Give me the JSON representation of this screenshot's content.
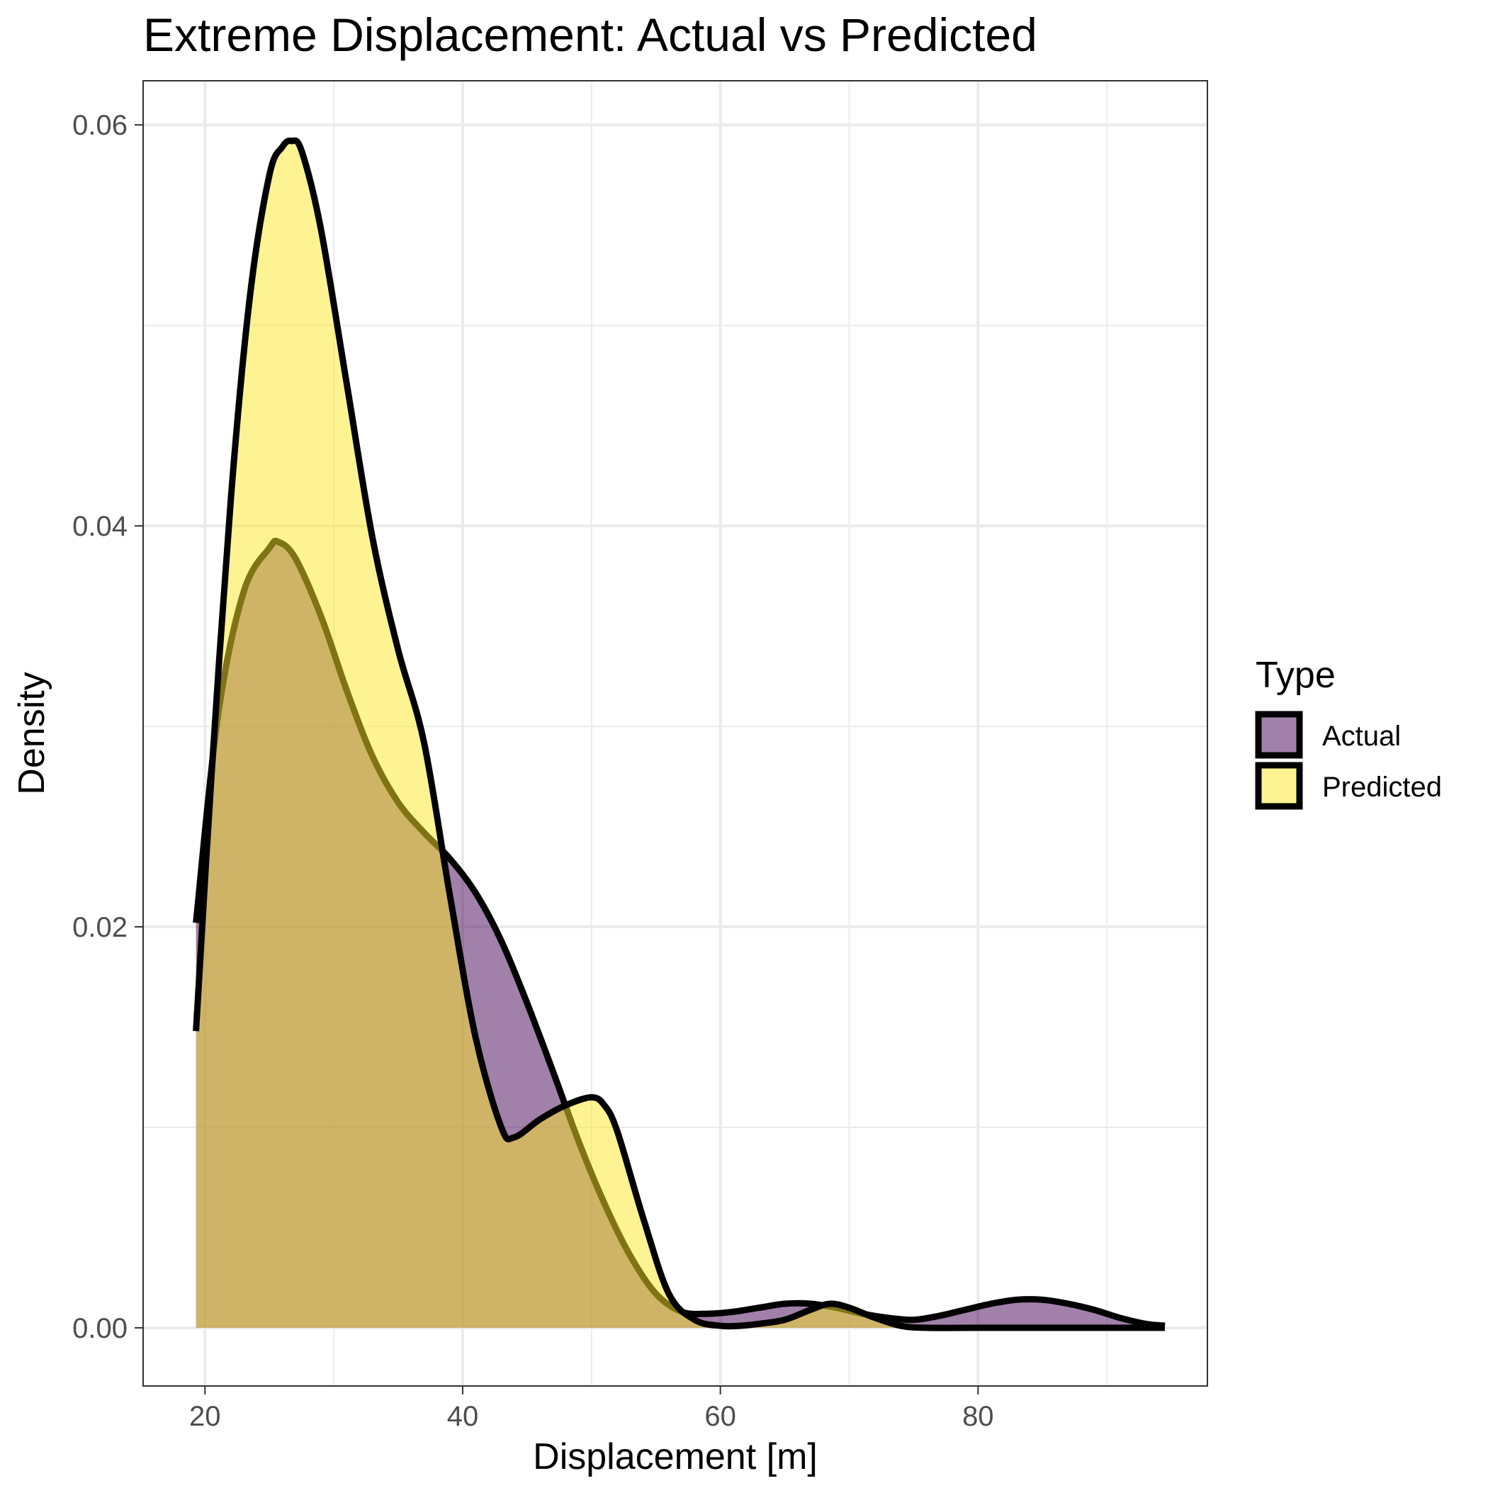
{
  "chart_data": {
    "type": "area",
    "title": "Extreme Displacement: Actual vs Predicted",
    "xlabel": "Displacement [m]",
    "ylabel": "Density",
    "xlim": [
      15.2,
      97.8
    ],
    "ylim": [
      -0.0029,
      0.0622
    ],
    "xticks": [
      20,
      40,
      60,
      80
    ],
    "xtick_labels": [
      "20",
      "40",
      "60",
      "80"
    ],
    "yticks": [
      0.0,
      0.02,
      0.04,
      0.06
    ],
    "ytick_labels": [
      "0.00",
      "0.02",
      "0.04",
      "0.06"
    ],
    "grid": true,
    "legend": {
      "title": "Type",
      "position": "right"
    },
    "series": [
      {
        "name": "Actual",
        "color": "#440154",
        "alpha": 0.5,
        "x": [
          19.3,
          21,
          23,
          25,
          25.7,
          27,
          29,
          31,
          33,
          35,
          37,
          39,
          41,
          43,
          45,
          47,
          49,
          51,
          53,
          55,
          57,
          59,
          61,
          63,
          65,
          67,
          69,
          71,
          73,
          75,
          77,
          79,
          81,
          83,
          85,
          87,
          89,
          91,
          93,
          94.5
        ],
        "y": [
          0.0202,
          0.0305,
          0.0367,
          0.0389,
          0.0392,
          0.0384,
          0.0355,
          0.0318,
          0.0285,
          0.0262,
          0.0247,
          0.0234,
          0.0217,
          0.0193,
          0.0162,
          0.0128,
          0.0093,
          0.0062,
          0.0036,
          0.0017,
          0.0008,
          0.0007,
          0.0008,
          0.001,
          0.0012,
          0.0012,
          0.001,
          0.0007,
          0.0005,
          0.0004,
          0.0006,
          0.0009,
          0.0012,
          0.0014,
          0.0014,
          0.0012,
          0.0009,
          0.0005,
          0.0002,
          0.0001
        ]
      },
      {
        "name": "Predicted",
        "color": "#fde725",
        "alpha": 0.5,
        "x": [
          19.3,
          20.5,
          22,
          23.5,
          25,
          26,
          26.7,
          27.5,
          29,
          31,
          33,
          35,
          37,
          39,
          41,
          43,
          44,
          46,
          48,
          50,
          51,
          52,
          54,
          56,
          58,
          60,
          61.5,
          63,
          65,
          67,
          68.5,
          70,
          72,
          74,
          76,
          80,
          85,
          90,
          94.5
        ],
        "y": [
          0.0148,
          0.0275,
          0.0413,
          0.0515,
          0.0575,
          0.0589,
          0.0592,
          0.0587,
          0.0548,
          0.0471,
          0.0394,
          0.0338,
          0.0292,
          0.0216,
          0.0145,
          0.01,
          0.0095,
          0.0104,
          0.0111,
          0.0115,
          0.0111,
          0.0098,
          0.0055,
          0.0017,
          0.0004,
          0.0001,
          0.0001,
          0.0002,
          0.0004,
          0.0009,
          0.0012,
          0.001,
          0.0005,
          0.0001,
          0.0,
          0.0,
          0.0,
          0.0,
          0.0
        ]
      }
    ]
  }
}
